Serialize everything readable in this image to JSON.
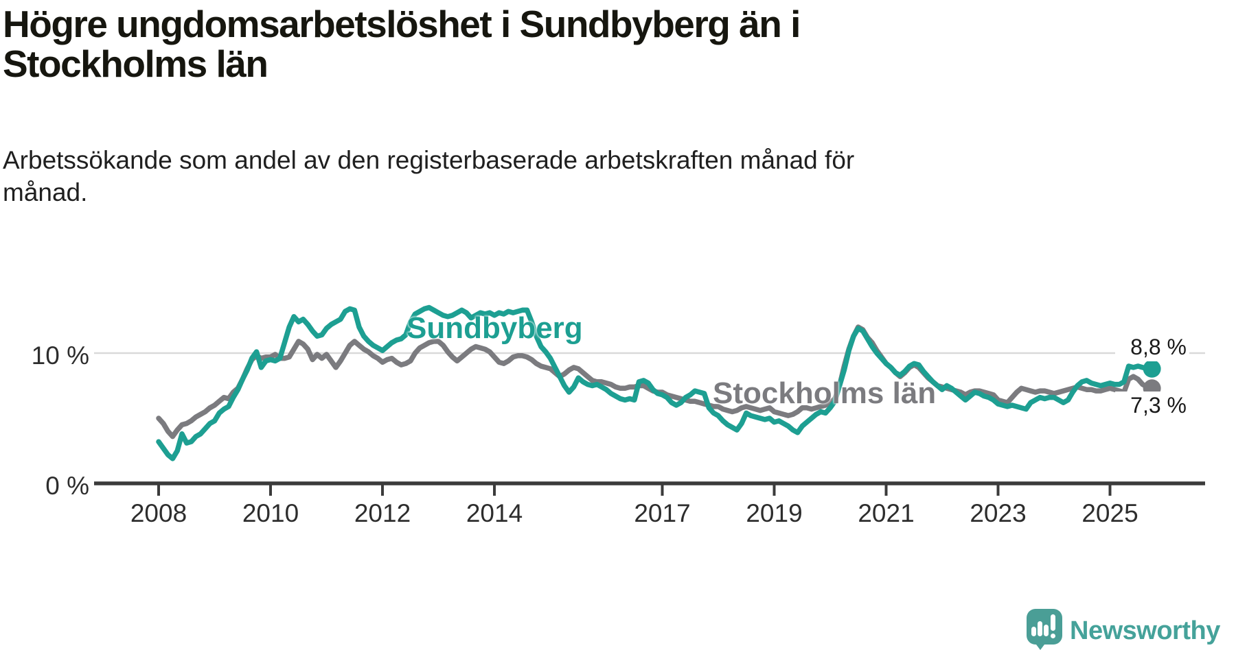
{
  "header": {
    "title_lines": [
      "Högre ungdomsarbetslöshet i Sundbyberg än i",
      "Stockholms län"
    ],
    "subtitle_lines": [
      "Arbetssökande som andel av den registerbaserade arbetskraften månad för",
      "månad."
    ]
  },
  "footer": {
    "brand": "Newsworthy"
  },
  "colors": {
    "teal": "#1d9f92",
    "gray": "#7b7b7f",
    "axis": "#3b3b3b",
    "grid": "#d9d9d9",
    "logo_teal": "#4a9e96",
    "text": "#16160f"
  },
  "chart_data": {
    "type": "line",
    "unit": "%",
    "x_start": "2008-01",
    "x_end": "2025-10",
    "frequency": "monthly",
    "x_tick_years": [
      2008,
      2010,
      2012,
      2014,
      2017,
      2019,
      2021,
      2023,
      2025
    ],
    "y_ticks": [
      {
        "value": 10,
        "label": "10 %"
      },
      {
        "value": 0,
        "label": "0 %"
      }
    ],
    "ylim": [
      0,
      14.5
    ],
    "grid": "horizontal gridline at 10% only",
    "legend_position": "inline labels on lines",
    "series": [
      {
        "name": "Stockholms län",
        "color": "#7b7b7f",
        "end_label": "7,3 %",
        "end_value": 7.3,
        "values": [
          5.0,
          4.6,
          4.0,
          3.6,
          4.1,
          4.5,
          4.6,
          4.8,
          5.1,
          5.3,
          5.5,
          5.8,
          6.0,
          6.3,
          6.6,
          6.5,
          7.0,
          7.3,
          8.0,
          8.8,
          9.5,
          9.8,
          9.6,
          9.7,
          9.7,
          9.9,
          9.6,
          9.6,
          9.7,
          10.3,
          10.9,
          10.7,
          10.3,
          9.5,
          9.9,
          9.6,
          9.9,
          9.4,
          8.9,
          9.4,
          10.0,
          10.6,
          10.9,
          10.6,
          10.3,
          10.1,
          9.8,
          9.6,
          9.3,
          9.5,
          9.6,
          9.3,
          9.1,
          9.2,
          9.4,
          10.0,
          10.4,
          10.6,
          10.8,
          10.9,
          10.9,
          10.6,
          10.1,
          9.7,
          9.4,
          9.7,
          10.0,
          10.3,
          10.5,
          10.4,
          10.3,
          10.1,
          9.7,
          9.3,
          9.2,
          9.4,
          9.7,
          9.8,
          9.8,
          9.7,
          9.5,
          9.2,
          9.0,
          8.9,
          8.8,
          8.5,
          8.2,
          8.4,
          8.7,
          8.9,
          8.8,
          8.5,
          8.2,
          7.9,
          7.8,
          7.8,
          7.7,
          7.6,
          7.4,
          7.3,
          7.3,
          7.4,
          7.4,
          7.5,
          7.5,
          7.3,
          7.1,
          7.0,
          7.0,
          6.8,
          6.7,
          6.6,
          6.5,
          6.4,
          6.3,
          6.3,
          6.2,
          6.1,
          6.0,
          5.9,
          5.9,
          5.7,
          5.6,
          5.5,
          5.6,
          5.8,
          5.9,
          5.8,
          5.7,
          5.6,
          5.7,
          5.8,
          5.5,
          5.4,
          5.3,
          5.2,
          5.3,
          5.5,
          5.8,
          5.8,
          5.7,
          5.8,
          5.9,
          6.0,
          6.2,
          6.5,
          7.5,
          9.0,
          10.3,
          11.3,
          12.0,
          11.8,
          11.2,
          10.8,
          10.2,
          9.7,
          9.2,
          8.9,
          8.5,
          8.2,
          8.5,
          8.9,
          9.1,
          8.9,
          8.5,
          8.1,
          7.8,
          7.5,
          7.4,
          7.3,
          7.2,
          7.1,
          7.0,
          6.8,
          7.0,
          7.1,
          7.1,
          7.0,
          6.9,
          6.8,
          6.4,
          6.3,
          6.2,
          6.6,
          7.0,
          7.3,
          7.2,
          7.1,
          7.0,
          7.1,
          7.1,
          7.0,
          6.9,
          7.0,
          7.1,
          7.2,
          7.3,
          7.4,
          7.3,
          7.2,
          7.2,
          7.1,
          7.1,
          7.2,
          7.3,
          7.2,
          7.1,
          7.0,
          8.0,
          8.2,
          8.0,
          7.6,
          7.4,
          7.3
        ]
      },
      {
        "name": "Sundbyberg",
        "color": "#1d9f92",
        "end_label": "8,8 %",
        "end_value": 8.8,
        "values": [
          3.2,
          2.7,
          2.2,
          1.9,
          2.5,
          3.8,
          3.1,
          3.2,
          3.6,
          3.8,
          4.2,
          4.6,
          4.8,
          5.4,
          5.7,
          5.9,
          6.6,
          7.2,
          8.0,
          8.7,
          9.6,
          10.1,
          8.9,
          9.4,
          9.5,
          9.4,
          9.6,
          10.8,
          12.0,
          12.8,
          12.4,
          12.6,
          12.2,
          11.7,
          11.3,
          11.4,
          11.9,
          12.2,
          12.4,
          12.6,
          13.2,
          13.4,
          13.3,
          12.0,
          11.3,
          10.9,
          10.6,
          10.4,
          10.2,
          10.5,
          10.8,
          11.0,
          11.1,
          11.4,
          12.4,
          13.0,
          13.2,
          13.4,
          13.5,
          13.3,
          13.1,
          12.9,
          12.8,
          12.9,
          13.1,
          13.3,
          13.1,
          12.7,
          12.9,
          13.1,
          13.0,
          13.1,
          12.9,
          13.1,
          13.0,
          13.2,
          13.1,
          13.2,
          13.3,
          13.3,
          12.4,
          11.3,
          10.5,
          10.1,
          9.6,
          8.9,
          8.2,
          7.5,
          7.0,
          7.4,
          8.1,
          7.8,
          7.6,
          7.5,
          7.6,
          7.4,
          7.2,
          6.9,
          6.7,
          6.5,
          6.4,
          6.5,
          6.4,
          7.8,
          7.9,
          7.7,
          7.2,
          6.9,
          6.8,
          6.6,
          6.2,
          6.0,
          6.2,
          6.6,
          6.8,
          7.1,
          7.0,
          6.9,
          5.8,
          5.4,
          5.2,
          4.8,
          4.5,
          4.3,
          4.1,
          4.6,
          5.4,
          5.2,
          5.1,
          5.0,
          4.9,
          5.0,
          4.7,
          4.8,
          4.6,
          4.4,
          4.1,
          3.9,
          4.4,
          4.7,
          5.0,
          5.3,
          5.5,
          5.4,
          5.8,
          6.3,
          7.5,
          8.7,
          10.2,
          11.3,
          11.9,
          11.7,
          11.1,
          10.5,
          10.0,
          9.6,
          9.2,
          8.9,
          8.5,
          8.3,
          8.6,
          9.0,
          9.2,
          9.1,
          8.6,
          8.2,
          7.8,
          7.5,
          7.2,
          7.5,
          7.3,
          7.0,
          6.7,
          6.4,
          6.7,
          7.0,
          6.9,
          6.7,
          6.6,
          6.4,
          6.1,
          6.0,
          5.9,
          6.0,
          5.9,
          5.8,
          5.7,
          6.2,
          6.4,
          6.6,
          6.5,
          6.6,
          6.6,
          6.4,
          6.2,
          6.4,
          7.0,
          7.5,
          7.8,
          7.9,
          7.7,
          7.6,
          7.5,
          7.6,
          7.7,
          7.6,
          7.6,
          7.8,
          9.0,
          8.9,
          9.0,
          8.9,
          8.8,
          8.8
        ]
      }
    ]
  }
}
